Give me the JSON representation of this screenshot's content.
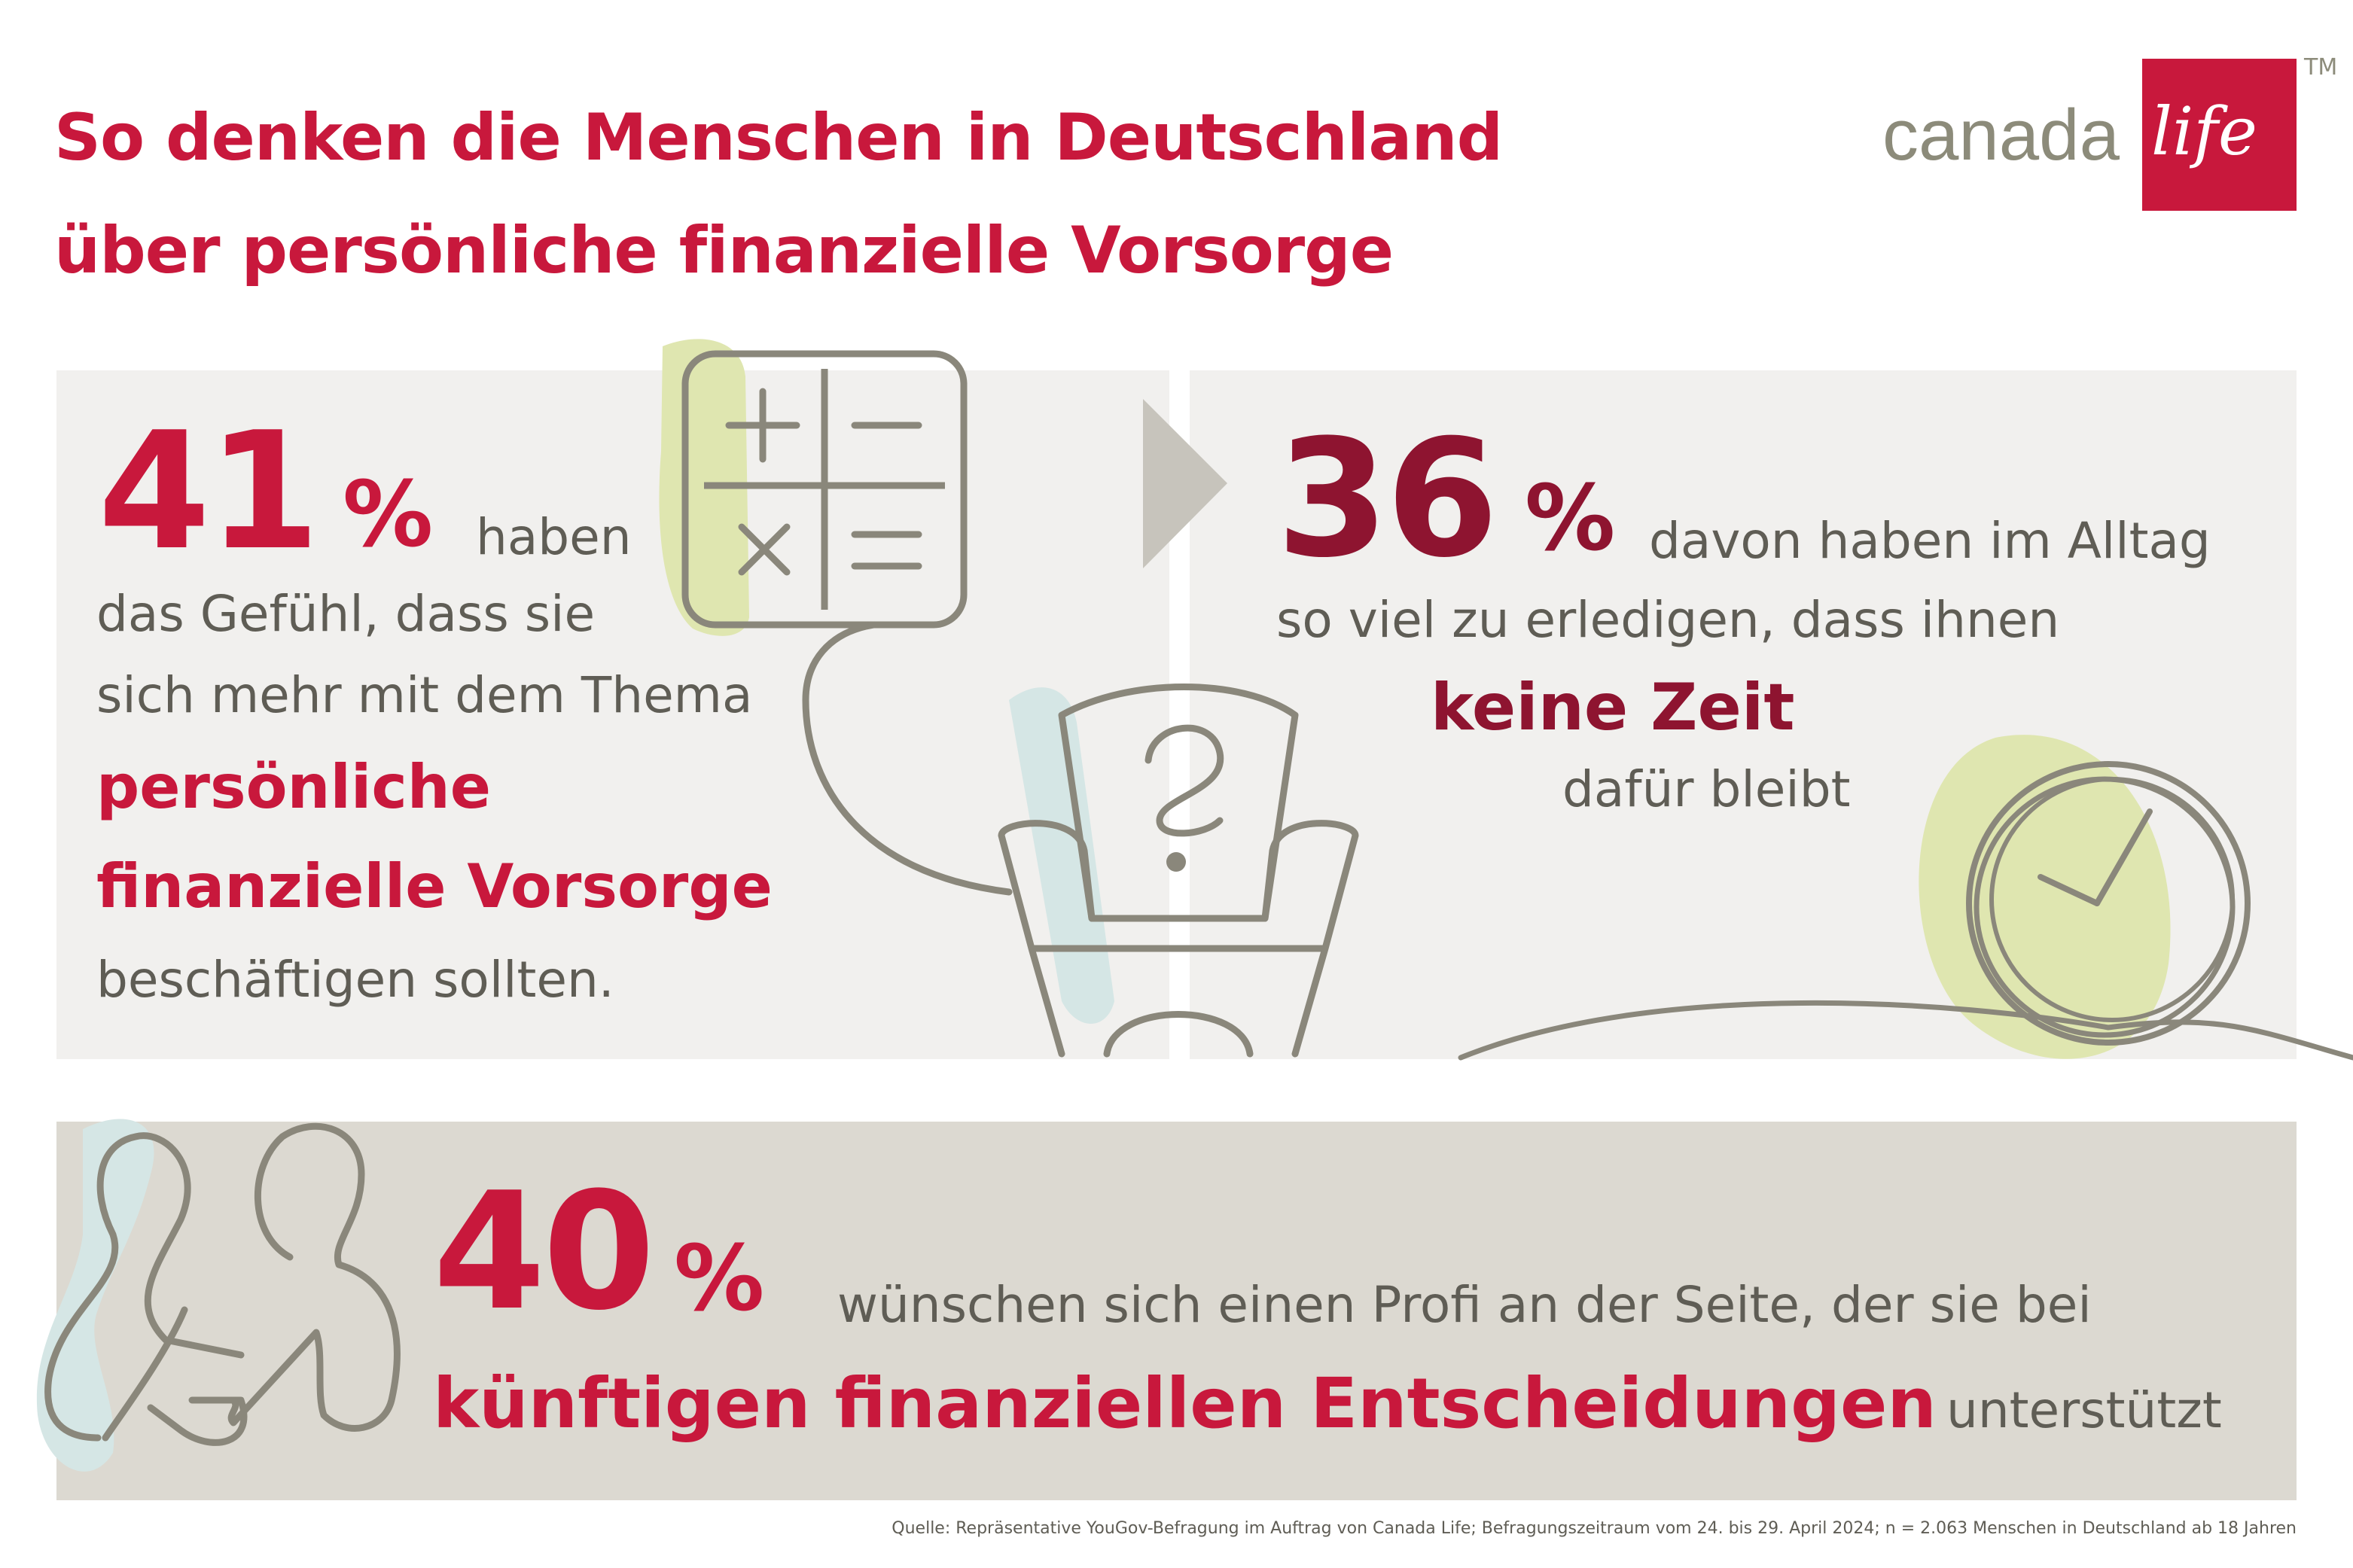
{
  "header": {
    "title_line1": "So denken die Menschen in Deutschland",
    "title_line2": "über persönliche finanzielle Vorsorge"
  },
  "logo": {
    "word1": "canada",
    "word2": "life",
    "trademark": "TM",
    "brand_color": "#c8183c"
  },
  "stat1": {
    "value": "41",
    "unit": "%",
    "text1": "haben",
    "text2": "das Gefühl, dass sie",
    "text3": "sich mehr mit dem Thema",
    "highlight1": "persönliche",
    "highlight2": "finanzielle Vorsorge",
    "text4": "beschäftigen sollten."
  },
  "stat2": {
    "value": "36",
    "unit": "%",
    "text1": "davon haben im Alltag",
    "text2": "so viel zu erledigen, dass ihnen",
    "highlight": "keine Zeit",
    "text3": "dafür bleibt"
  },
  "stat3": {
    "value": "40",
    "unit": "%",
    "text1": "wünschen sich einen Profi an der Seite, der sie bei",
    "highlight": "künftigen finanziellen Entscheidungen",
    "text2": "unterstützt"
  },
  "footer": {
    "source": "Quelle: Repräsentative YouGov-Befragung im Auftrag von Canada Life; Befragungszeitraum vom 24. bis 29. April 2024; n = 2.063 Menschen in Deutschland ab 18 Jahren"
  },
  "icons": [
    "calculator-icon",
    "armchair-icon",
    "question-mark-icon",
    "arrow-right-icon",
    "clock-icon",
    "people-icon"
  ],
  "colors": {
    "accent_red": "#c8183c",
    "dark_red": "#8e1430",
    "panel_light": "#f1f0ee",
    "panel_grey": "#dcd9d1",
    "line_grey": "#8a877b",
    "accent_green": "#dfe6b0",
    "accent_blue": "#d5e6e5"
  }
}
